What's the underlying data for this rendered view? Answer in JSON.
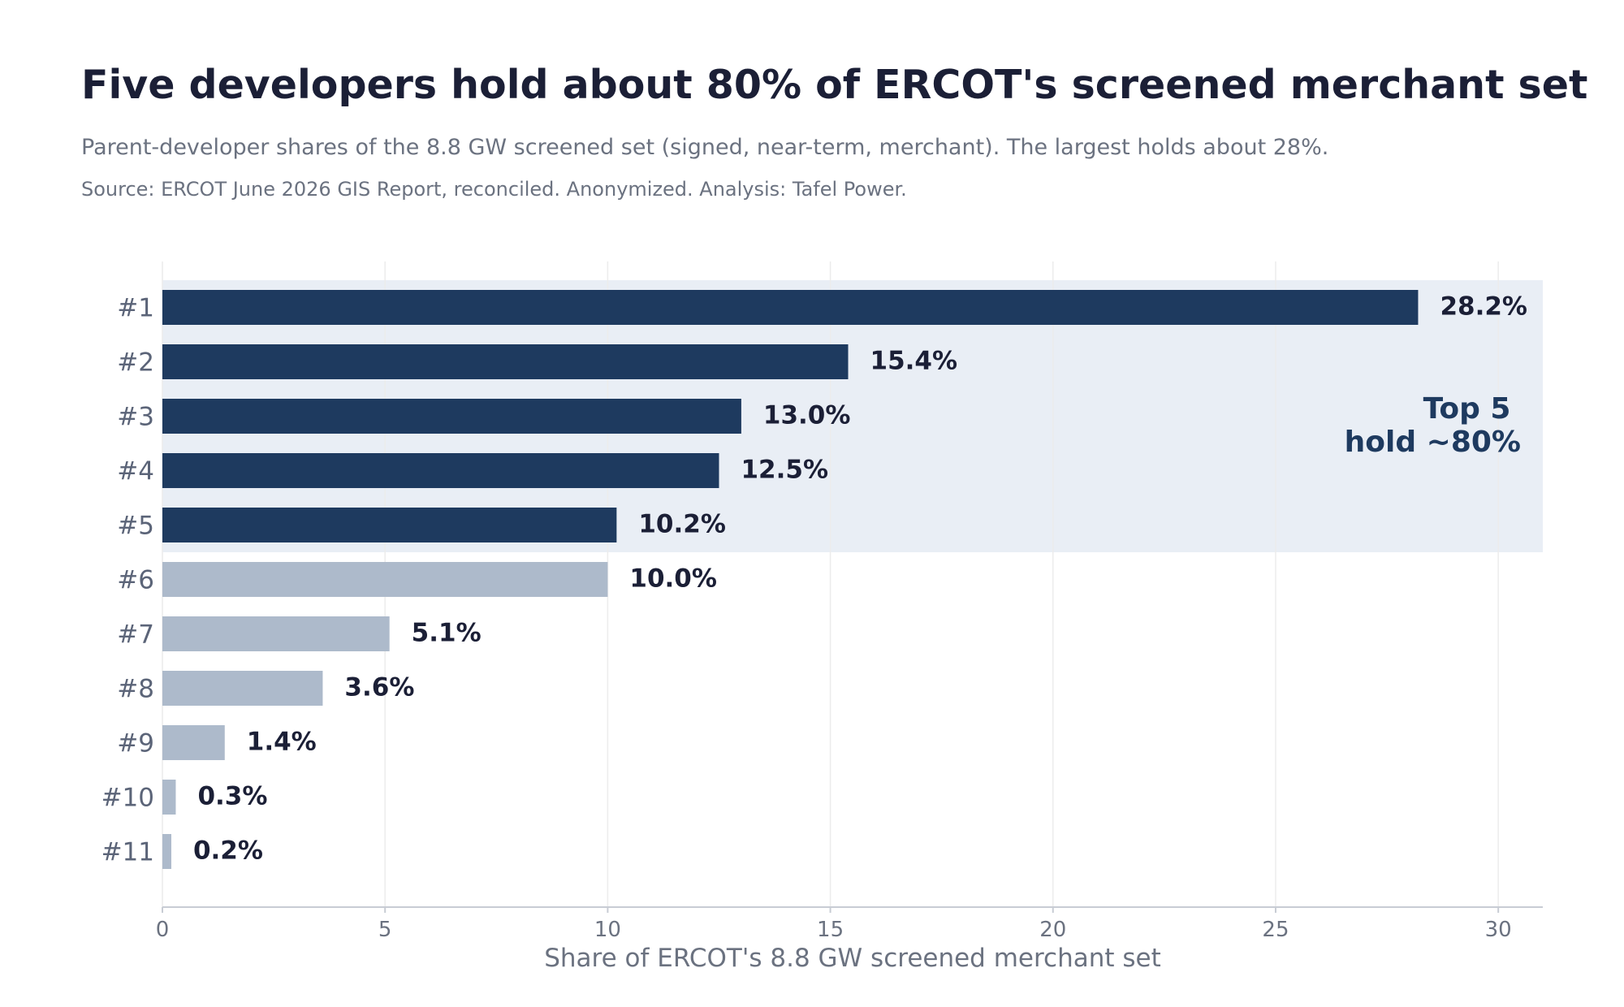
{
  "header": {
    "title": "Five developers hold about 80% of ERCOT's screened merchant set",
    "subtitle": "Parent-developer shares of the 8.8 GW screened set (signed, near-term, merchant). The largest holds about 28%.",
    "source": "Source: ERCOT June 2026 GIS Report, reconciled. Anonymized. Analysis: Tafel Power."
  },
  "chart_data": {
    "type": "bar",
    "orientation": "horizontal",
    "title": "Five developers hold about 80% of ERCOT's screened merchant set",
    "subtitle": "Parent-developer shares of the 8.8 GW screened set (signed, near-term, merchant). The largest holds about 28%.",
    "xlabel": "Share of ERCOT's 8.8 GW screened merchant set",
    "ylabel": "",
    "categories": [
      "#1",
      "#2",
      "#3",
      "#4",
      "#5",
      "#6",
      "#7",
      "#8",
      "#9",
      "#10",
      "#11"
    ],
    "values": [
      28.2,
      15.4,
      13.0,
      12.5,
      10.2,
      10.0,
      5.1,
      3.6,
      1.4,
      0.3,
      0.2
    ],
    "value_labels": [
      "28.2%",
      "15.4%",
      "13.0%",
      "12.5%",
      "10.2%",
      "10.0%",
      "5.1%",
      "3.6%",
      "1.4%",
      "0.3%",
      "0.2%"
    ],
    "xlim": [
      0,
      31
    ],
    "xticks": [
      0,
      5,
      10,
      15,
      20,
      25,
      30
    ],
    "xtick_labels": [
      "0",
      "5",
      "10",
      "15",
      "20",
      "25",
      "30"
    ],
    "grid": "vertical",
    "highlight_count": 5,
    "annotation": {
      "lines": [
        "Top 5",
        "hold ~80%"
      ]
    },
    "colors": {
      "highlight": "#1e3a5f",
      "other": "#adbacb",
      "band": "#e9eef5",
      "grid": "#ececec",
      "axis": "#c8ccd4",
      "annotation": "#1e3a5f"
    }
  }
}
